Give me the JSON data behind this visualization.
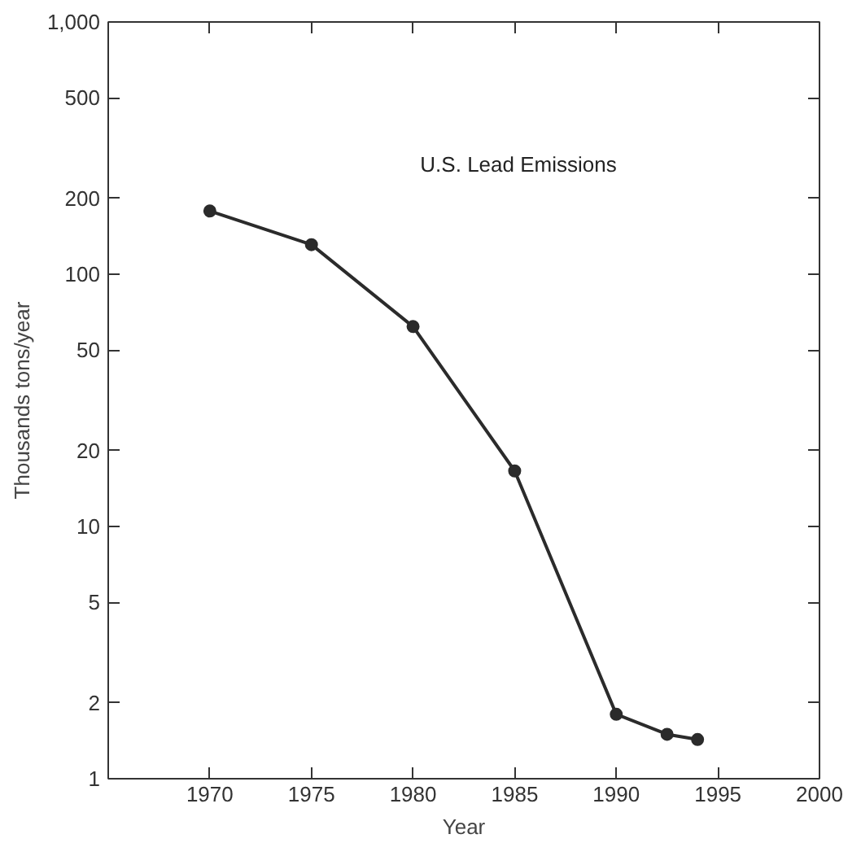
{
  "chart_data": {
    "type": "line",
    "title": "U.S. Lead Emissions",
    "xlabel": "Year",
    "ylabel": "Thousands tons/year",
    "x": [
      1970,
      1975,
      1980,
      1985,
      1990,
      1992.5,
      1994
    ],
    "series": [
      {
        "color": "#2b2b2b",
        "values": [
          178,
          131,
          62,
          16.6,
          1.8,
          1.5,
          1.43
        ]
      }
    ],
    "xlim": [
      1965,
      2000
    ],
    "xticks": [
      1970,
      1975,
      1980,
      1985,
      1990,
      1995,
      2000
    ],
    "ylim": [
      1,
      1000
    ],
    "yticks": [
      1,
      2,
      5,
      10,
      20,
      50,
      100,
      200,
      500,
      {
        "value": 1000,
        "label": "1,000"
      }
    ],
    "log": "y",
    "grid": false,
    "marker": "circle",
    "line_style": "solid"
  }
}
